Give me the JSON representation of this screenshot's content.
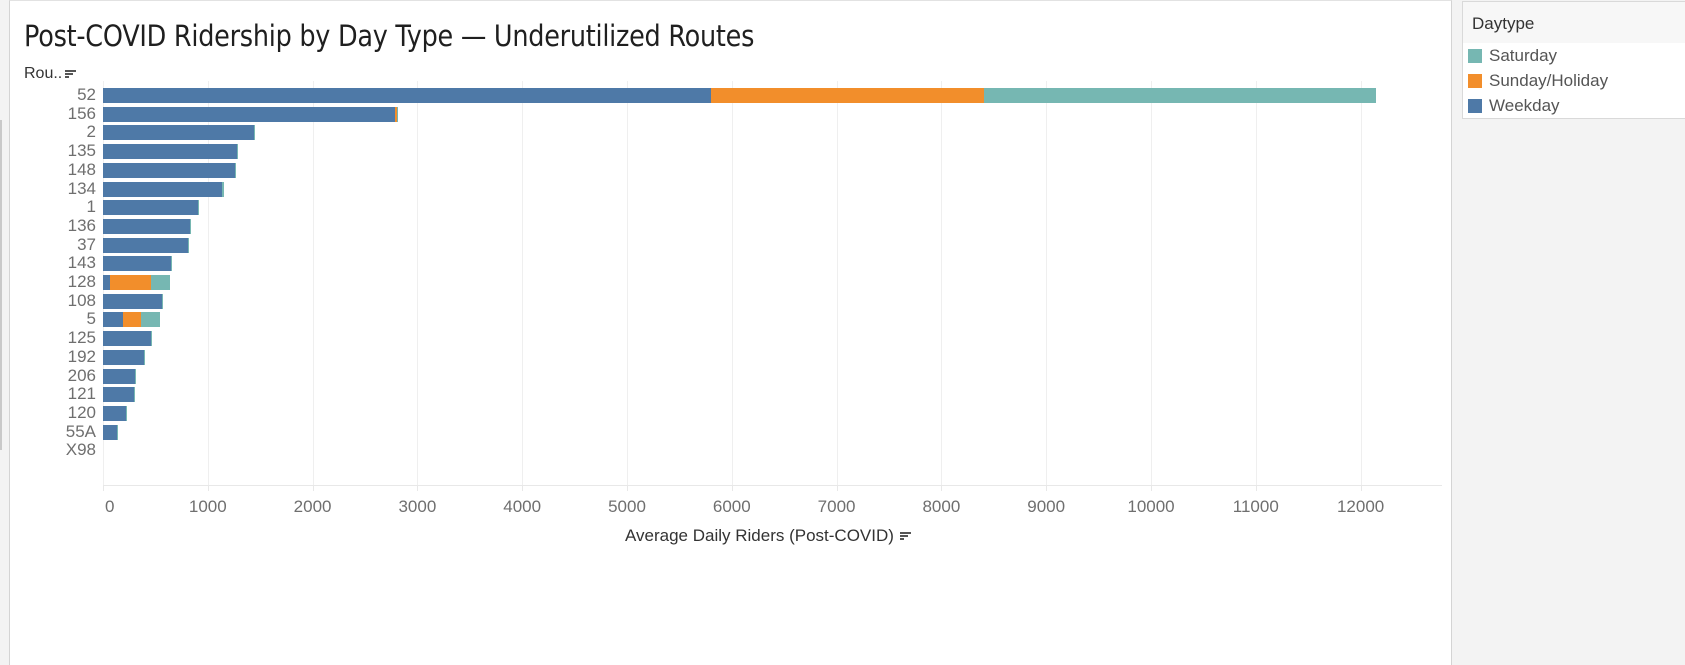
{
  "chart": {
    "title": "Post-COVID Ridership by Day Type — Underutilized Routes",
    "row_header": "Rou..",
    "x_axis_title": "Average Daily Riders (Post-COVID)",
    "x_ticks": [
      "0",
      "1000",
      "2000",
      "3000",
      "4000",
      "5000",
      "6000",
      "7000",
      "8000",
      "9000",
      "10000",
      "11000",
      "12000"
    ]
  },
  "legend": {
    "title": "Daytype",
    "items": [
      {
        "label": "Saturday",
        "color": "#76b7b2"
      },
      {
        "label": "Sunday/Holiday",
        "color": "#f28e2b"
      },
      {
        "label": "Weekday",
        "color": "#4e79a7"
      }
    ]
  },
  "chart_data": {
    "type": "bar",
    "orientation": "horizontal",
    "stacked": true,
    "title": "Post-COVID Ridership by Day Type — Underutilized Routes",
    "xlabel": "Average Daily Riders (Post-COVID)",
    "ylabel": "Route",
    "xlim": [
      0,
      12800
    ],
    "grid": true,
    "legend_position": "right",
    "legend_title": "Daytype",
    "categories": [
      "52",
      "156",
      "2",
      "135",
      "148",
      "134",
      "1",
      "136",
      "37",
      "143",
      "128",
      "108",
      "5",
      "125",
      "192",
      "206",
      "121",
      "120",
      "55A",
      "X98"
    ],
    "series": [
      {
        "name": "Weekday",
        "color": "#4e79a7",
        "values": [
          5800,
          2790,
          1440,
          1280,
          1260,
          1140,
          910,
          830,
          810,
          650,
          65,
          565,
          190,
          460,
          390,
          305,
          295,
          220,
          130,
          0
        ]
      },
      {
        "name": "Sunday/Holiday",
        "color": "#f28e2b",
        "values": [
          2610,
          15,
          0,
          0,
          0,
          0,
          0,
          0,
          0,
          0,
          390,
          0,
          175,
          0,
          0,
          0,
          0,
          0,
          0,
          0
        ]
      },
      {
        "name": "Saturday",
        "color": "#76b7b2",
        "values": [
          3740,
          10,
          10,
          10,
          10,
          10,
          10,
          10,
          10,
          10,
          185,
          10,
          180,
          10,
          10,
          10,
          10,
          10,
          10,
          0
        ]
      }
    ]
  }
}
